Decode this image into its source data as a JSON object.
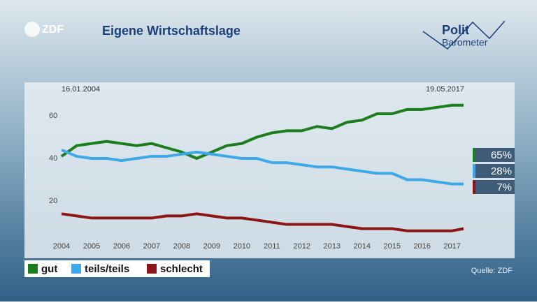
{
  "chart_data": {
    "type": "line",
    "title": "Eigene Wirtschaftslage",
    "logo": "ZDF",
    "brand": [
      "Polit",
      "Barometer"
    ],
    "source": "Quelle: ZDF",
    "annotations": [
      "16.01.2004",
      "19.05.2017"
    ],
    "x": [
      2004.0,
      2004.5,
      2005.0,
      2005.5,
      2006.0,
      2006.5,
      2007.0,
      2007.5,
      2008.0,
      2008.5,
      2009.0,
      2009.5,
      2010.0,
      2010.5,
      2011.0,
      2011.5,
      2012.0,
      2012.5,
      2013.0,
      2013.5,
      2014.0,
      2014.5,
      2015.0,
      2015.5,
      2016.0,
      2016.5,
      2017.0,
      2017.38
    ],
    "series": [
      {
        "name": "gut",
        "color": "#1b7d1b",
        "end_label": "65%",
        "values": [
          41,
          46,
          47,
          48,
          47,
          46,
          47,
          45,
          43,
          40,
          43,
          46,
          47,
          50,
          52,
          53,
          53,
          55,
          54,
          57,
          58,
          61,
          61,
          63,
          63,
          64,
          65,
          65
        ]
      },
      {
        "name": "teils/teils",
        "color": "#3fa9e8",
        "end_label": "28%",
        "values": [
          44,
          41,
          40,
          40,
          39,
          40,
          41,
          41,
          42,
          43,
          42,
          41,
          40,
          40,
          38,
          38,
          37,
          36,
          36,
          35,
          34,
          33,
          33,
          30,
          30,
          29,
          28,
          28
        ]
      },
      {
        "name": "schlecht",
        "color": "#8b1616",
        "end_label": "7%",
        "values": [
          14,
          13,
          12,
          12,
          12,
          12,
          12,
          13,
          13,
          14,
          13,
          12,
          12,
          11,
          10,
          9,
          9,
          9,
          9,
          8,
          7,
          7,
          7,
          6,
          6,
          6,
          6,
          7
        ]
      }
    ],
    "xlim": [
      2004.0,
      2017.38
    ],
    "xticks": [
      2004,
      2005,
      2006,
      2007,
      2008,
      2009,
      2010,
      2011,
      2012,
      2013,
      2014,
      2015,
      2016,
      2017
    ],
    "ylim": [
      0,
      70
    ],
    "yticks": [
      20,
      40,
      60
    ],
    "grid": false
  }
}
